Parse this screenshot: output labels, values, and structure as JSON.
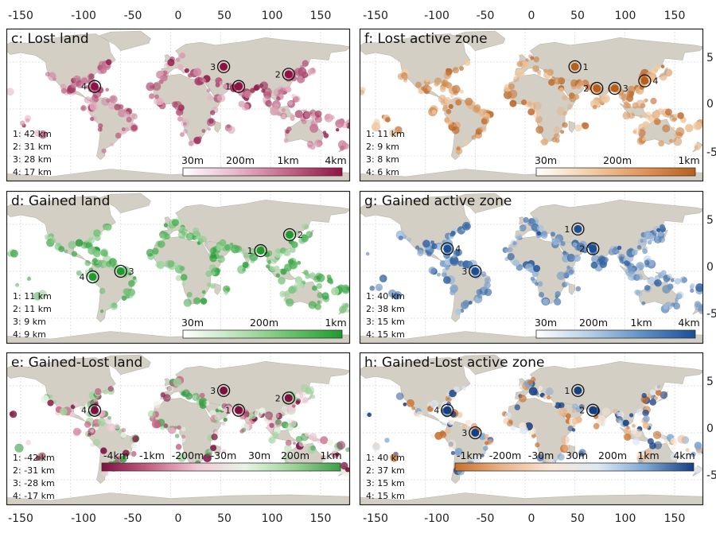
{
  "x_ticks": [
    "-150",
    "-100",
    "-50",
    "0",
    "50",
    "100",
    "150"
  ],
  "y_ticks": [
    "5",
    "0",
    "-5"
  ],
  "panels": [
    {
      "id": "c",
      "title": "c:  Lost land",
      "side": "left",
      "row": 0,
      "dot_color": "#a5294f",
      "palette": [
        "#ffffff",
        "#e9b8c8",
        "#c46384",
        "#8f1244"
      ],
      "cbar_labels": [
        "30m",
        "200m",
        "1km",
        "4km"
      ],
      "stats": [
        "1: 42 km",
        "2: 31 km",
        "3: 28 km",
        "4: 17 km"
      ],
      "markers": [
        {
          "n": "1",
          "lon": 68,
          "lat": 24,
          "label_side": "left"
        },
        {
          "n": "2",
          "lon": 118,
          "lat": 37,
          "label_side": "left"
        },
        {
          "n": "3",
          "lon": 53,
          "lat": 45,
          "label_side": "left"
        },
        {
          "n": "4",
          "lon": -76,
          "lat": 24,
          "label_side": "left"
        }
      ]
    },
    {
      "id": "d",
      "title": "d:  Gained land",
      "side": "left",
      "row": 1,
      "dot_color": "#34a33e",
      "palette": [
        "#ffffff",
        "#bfe3bb",
        "#6cc26d",
        "#1f9a2e"
      ],
      "cbar_labels": [
        "30m",
        "200m",
        "1km"
      ],
      "stats": [
        "1: 11 km",
        "2: 11 km",
        "3: 9 km",
        "4: 9 km"
      ],
      "markers": [
        {
          "n": "1",
          "lon": 90,
          "lat": 22,
          "label_side": "left"
        },
        {
          "n": "2",
          "lon": 119,
          "lat": 39,
          "label_side": "right"
        },
        {
          "n": "3",
          "lon": -50,
          "lat": 0,
          "label_side": "right"
        },
        {
          "n": "4",
          "lon": -78,
          "lat": -6,
          "label_side": "left"
        }
      ]
    },
    {
      "id": "e",
      "title": "e: Gained-Lost land",
      "side": "left",
      "row": 2,
      "dot_color": "#b04e73",
      "palette": [
        "#7d1040",
        "#c46384",
        "#f0c9d6",
        "#e8f3e4",
        "#9fd39b",
        "#3d9e4a"
      ],
      "cbar_labels": [
        "-4km",
        "-1km",
        "-200m",
        "-30m",
        "30m",
        "200m",
        "1km"
      ],
      "stats": [
        "1: -42 km",
        "2: -31 km",
        "3: -28 km",
        "4: -17 km"
      ],
      "markers": [
        {
          "n": "1",
          "lon": 68,
          "lat": 24,
          "label_side": "left"
        },
        {
          "n": "2",
          "lon": 118,
          "lat": 37,
          "label_side": "left"
        },
        {
          "n": "3",
          "lon": 53,
          "lat": 45,
          "label_side": "left"
        },
        {
          "n": "4",
          "lon": -76,
          "lat": 24,
          "label_side": "left"
        }
      ]
    },
    {
      "id": "f",
      "title": "f:  Lost active zone",
      "side": "right",
      "row": 0,
      "dot_color": "#d8843f",
      "palette": [
        "#ffffff",
        "#f3cfa9",
        "#e2955a",
        "#b85f1e"
      ],
      "cbar_labels": [
        "30m",
        "200m",
        "1km"
      ],
      "stats": [
        "1: 11 km",
        "2: 9 km",
        "3: 8 km",
        "4: 6 km"
      ],
      "markers": [
        {
          "n": "1",
          "lon": 50,
          "lat": 45,
          "label_side": "right"
        },
        {
          "n": "2",
          "lon": 72,
          "lat": 22,
          "label_side": "left"
        },
        {
          "n": "3",
          "lon": 90,
          "lat": 22,
          "label_side": "right"
        },
        {
          "n": "4",
          "lon": 120,
          "lat": 30,
          "label_side": "right"
        }
      ]
    },
    {
      "id": "g",
      "title": "g:  Gained active zone",
      "side": "right",
      "row": 1,
      "dot_color": "#3f78b8",
      "palette": [
        "#ffffff",
        "#b8cfe6",
        "#5e90c6",
        "#1a4f96"
      ],
      "cbar_labels": [
        "30m",
        "200m",
        "1km",
        "4km"
      ],
      "stats": [
        "1: 40 km",
        "2: 38 km",
        "3: 15 km",
        "4: 15 km"
      ],
      "markers": [
        {
          "n": "1",
          "lon": 53,
          "lat": 45,
          "label_side": "left"
        },
        {
          "n": "2",
          "lon": 68,
          "lat": 24,
          "label_side": "left"
        },
        {
          "n": "3",
          "lon": -50,
          "lat": 0,
          "label_side": "left"
        },
        {
          "n": "4",
          "lon": -78,
          "lat": 24,
          "label_side": "right"
        }
      ]
    },
    {
      "id": "h",
      "title": "h: Gained-Lost active zone",
      "side": "right",
      "row": 2,
      "dot_color": "#4a7fbc",
      "palette": [
        "#c86f2d",
        "#eab48a",
        "#f7e6d6",
        "#dde8f3",
        "#7ea6d2",
        "#163f82"
      ],
      "cbar_labels": [
        "-1km",
        "-200m",
        "-30m",
        "30m",
        "200m",
        "1km",
        "4km"
      ],
      "stats": [
        "1: 40 km",
        "2: 37 km",
        "3: 15 km",
        "4: 15 km"
      ],
      "markers": [
        {
          "n": "1",
          "lon": 53,
          "lat": 45,
          "label_side": "left"
        },
        {
          "n": "2",
          "lon": 68,
          "lat": 24,
          "label_side": "left"
        },
        {
          "n": "3",
          "lon": -50,
          "lat": 0,
          "label_side": "left"
        },
        {
          "n": "4",
          "lon": -78,
          "lat": 24,
          "label_side": "left"
        }
      ]
    }
  ]
}
